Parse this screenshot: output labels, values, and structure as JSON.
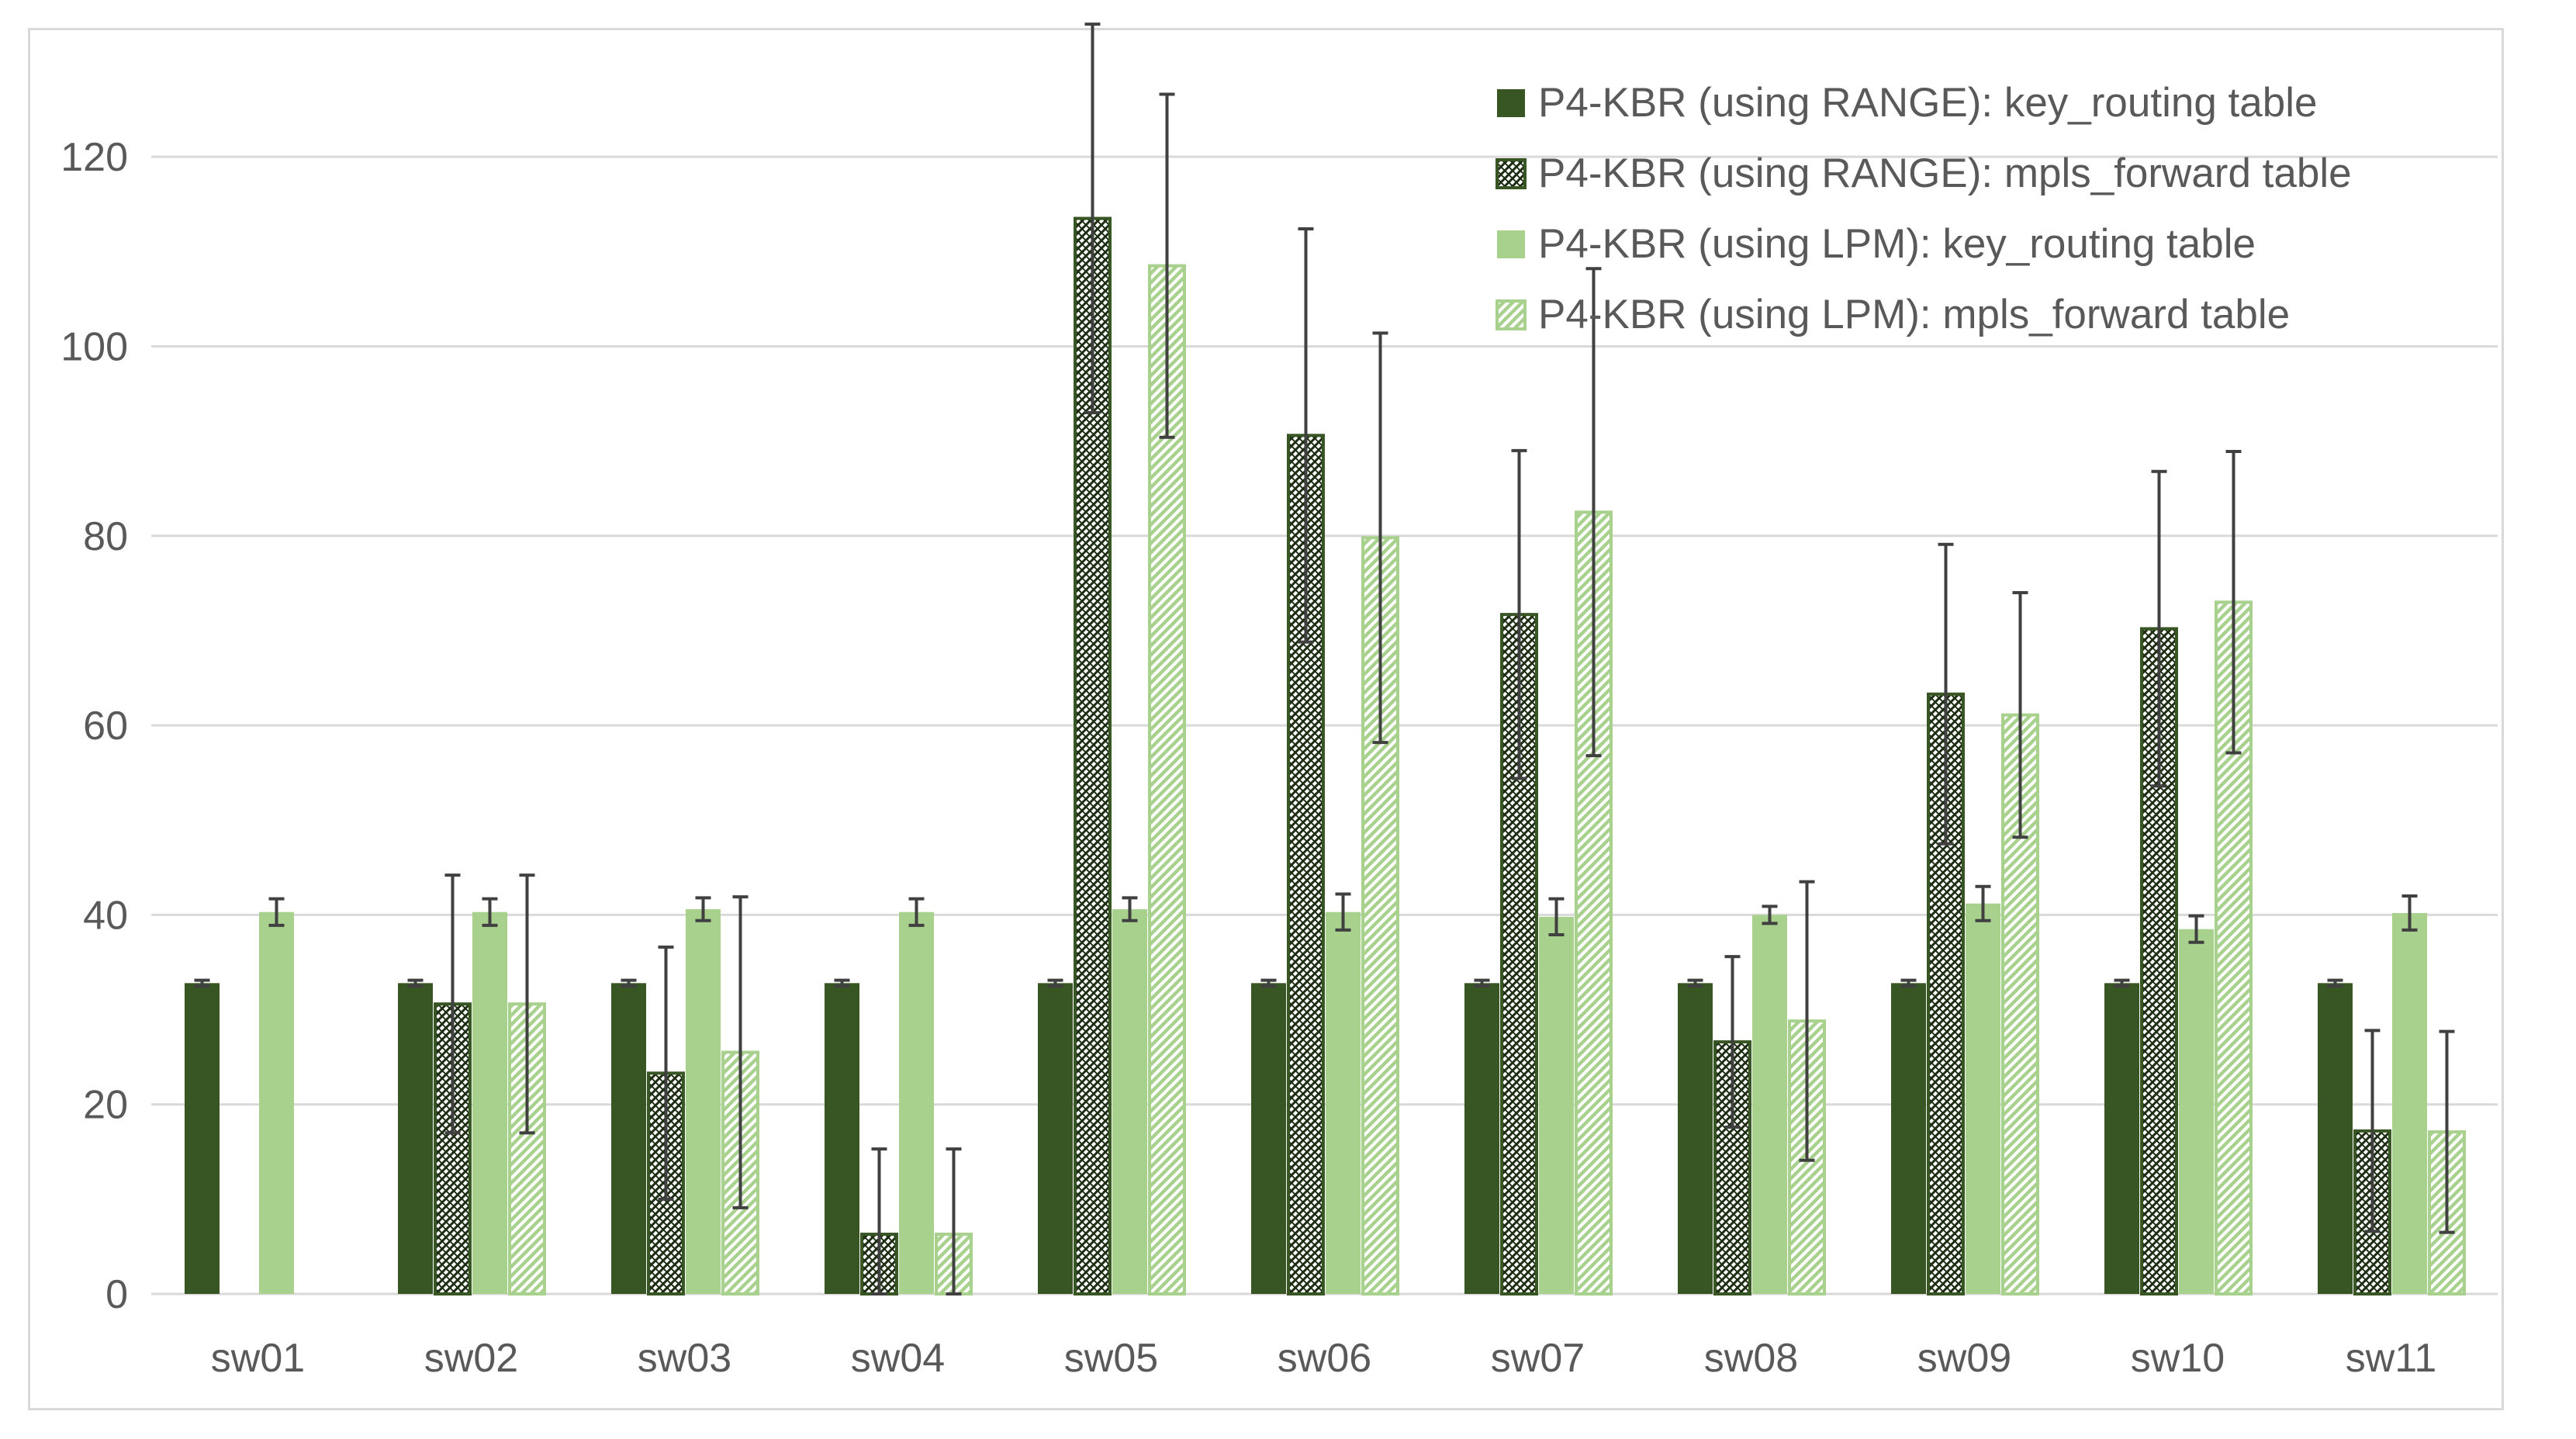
{
  "chart_data": {
    "type": "bar",
    "title": "",
    "xlabel": "",
    "ylabel": "",
    "ylim": [
      0,
      130
    ],
    "yticks": [
      0,
      20,
      40,
      60,
      80,
      100,
      120
    ],
    "grid": true,
    "legend_position": "top-right",
    "categories": [
      "sw01",
      "sw02",
      "sw03",
      "sw04",
      "sw05",
      "sw06",
      "sw07",
      "sw08",
      "sw09",
      "sw10",
      "sw11"
    ],
    "series": [
      {
        "name": "P4-KBR (using RANGE): key_routing table",
        "color": "#375623",
        "pattern": "solid",
        "values": [
          32.8,
          32.8,
          32.8,
          32.8,
          32.8,
          32.8,
          32.8,
          32.8,
          32.8,
          32.8,
          32.8
        ],
        "errors": [
          0.3,
          0.3,
          0.3,
          0.3,
          0.3,
          0.3,
          0.3,
          0.3,
          0.3,
          0.3,
          0.3
        ]
      },
      {
        "name": "P4-KBR (using RANGE): mpls_forward table",
        "color": "#375623",
        "pattern": "crosshatch",
        "values": [
          0,
          30.6,
          23.3,
          6.3,
          113.5,
          90.6,
          71.7,
          26.6,
          63.3,
          70.2,
          17.2
        ],
        "errors": [
          0,
          13.6,
          13.3,
          9,
          20.5,
          21.8,
          17.3,
          9,
          15.8,
          16.6,
          10.6
        ]
      },
      {
        "name": "P4-KBR (using LPM): key_routing table",
        "color": "#a9d18e",
        "pattern": "solid",
        "values": [
          40.3,
          40.3,
          40.6,
          40.3,
          40.6,
          40.3,
          39.8,
          40,
          41.2,
          38.5,
          40.2
        ],
        "errors": [
          1.4,
          1.4,
          1.2,
          1.4,
          1.2,
          1.9,
          1.9,
          0.9,
          1.8,
          1.4,
          1.8
        ]
      },
      {
        "name": "P4-KBR (using LPM): mpls_forward table",
        "color": "#a9d18e",
        "pattern": "diagonal",
        "values": [
          0,
          30.6,
          25.5,
          6.3,
          108.5,
          79.8,
          82.5,
          28.8,
          61.1,
          73,
          17.1
        ],
        "errors": [
          0,
          13.6,
          16.4,
          9,
          18.1,
          21.6,
          25.7,
          14.7,
          12.9,
          15.9,
          10.6
        ]
      }
    ]
  }
}
